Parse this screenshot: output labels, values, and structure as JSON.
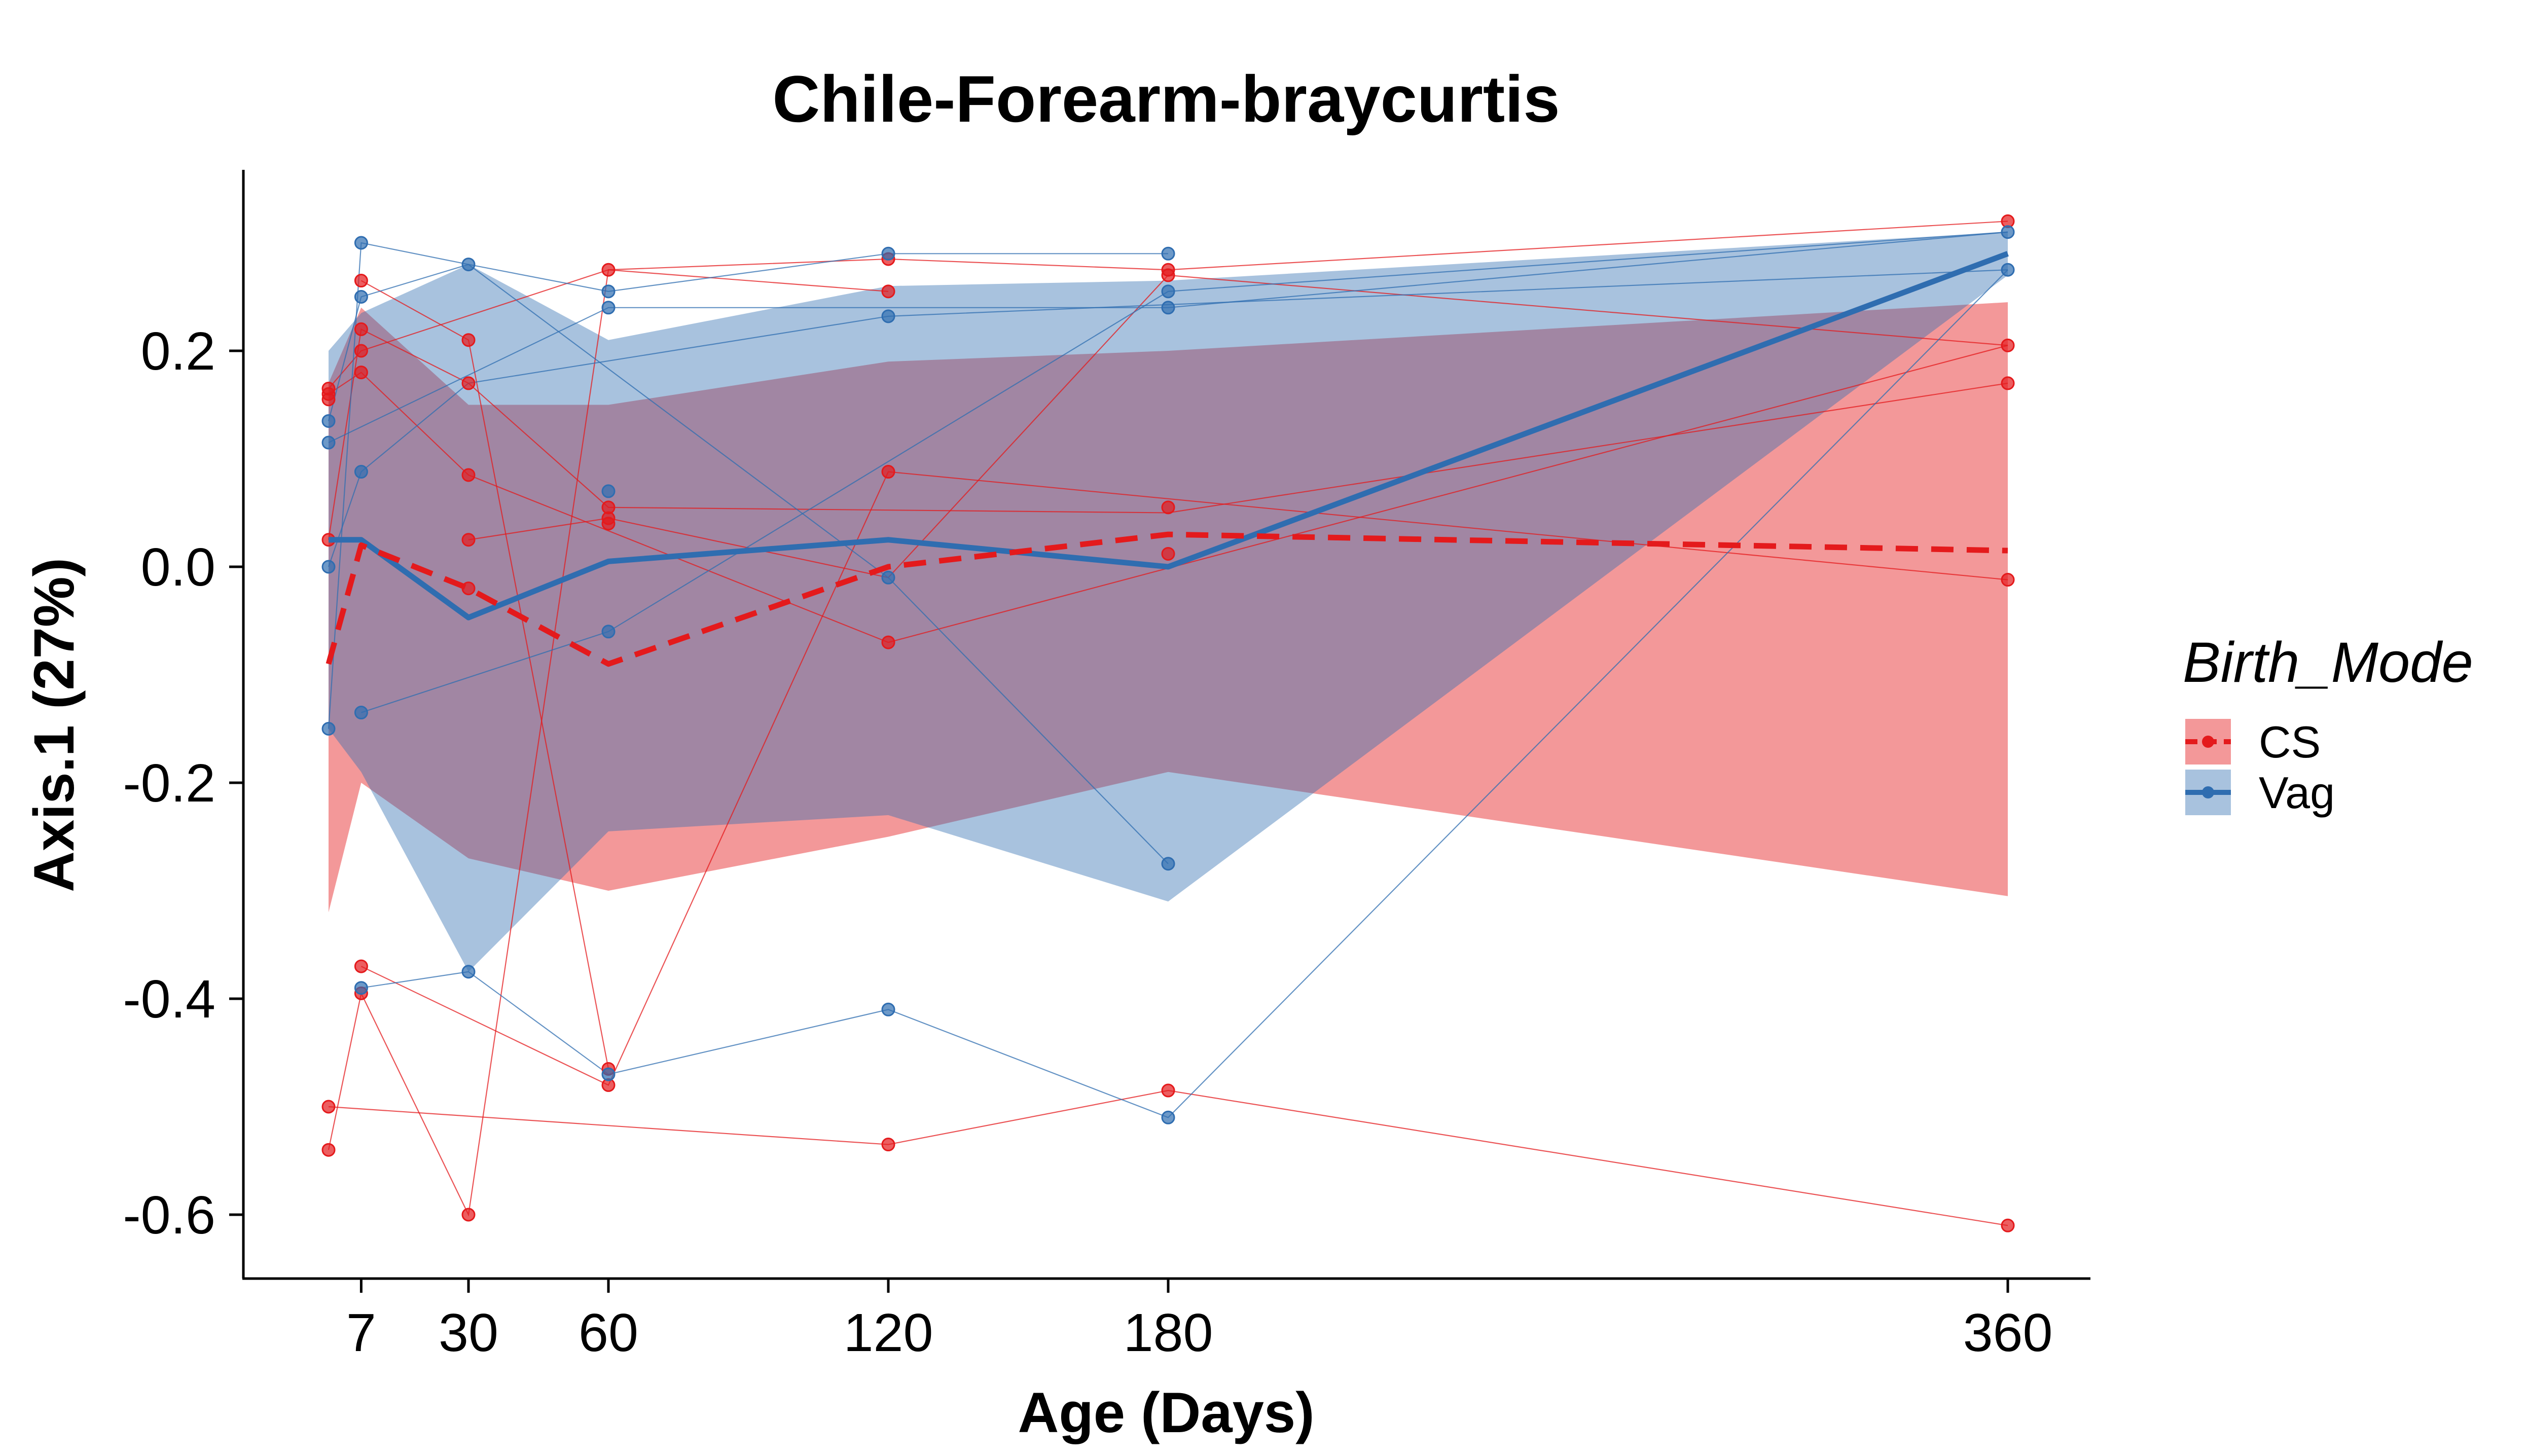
{
  "chart_data": {
    "type": "line",
    "title": "Chile-Forearm-braycurtis",
    "xlabel": "Age (Days)",
    "ylabel": "Axis.1 (27%)",
    "x_ticks": [
      7,
      30,
      60,
      120,
      180,
      360
    ],
    "y_ticks": [
      0.2,
      0.0,
      -0.2,
      -0.4,
      -0.6
    ],
    "y_tick_labels": [
      "0.2",
      "0.0",
      "-0.2",
      "-0.4",
      "-0.6"
    ],
    "xlim": [
      -10,
      378
    ],
    "ylim": [
      -0.655,
      0.365
    ],
    "grid": false,
    "legend": {
      "title": "Birth_Mode",
      "position": "right",
      "entries": [
        "CS",
        "Vag"
      ]
    },
    "series": [
      {
        "name": "CS",
        "color": "#E41A1C",
        "line_style": "dashed",
        "x": [
          0,
          7,
          30,
          60,
          120,
          180,
          360
        ],
        "mean": [
          -0.09,
          0.02,
          -0.02,
          -0.09,
          0.0,
          0.03,
          0.015
        ],
        "ribbon_lower": [
          -0.32,
          -0.2,
          -0.27,
          -0.3,
          -0.25,
          -0.19,
          -0.305
        ],
        "ribbon_upper": [
          0.17,
          0.24,
          0.15,
          0.15,
          0.19,
          0.2,
          0.245
        ],
        "points": [
          [
            0,
            0.165
          ],
          [
            0,
            0.16
          ],
          [
            0,
            0.155
          ],
          [
            0,
            0.025
          ],
          [
            0,
            -0.5
          ],
          [
            0,
            -0.54
          ],
          [
            7,
            0.265
          ],
          [
            7,
            0.22
          ],
          [
            7,
            0.2
          ],
          [
            7,
            0.18
          ],
          [
            7,
            -0.37
          ],
          [
            7,
            -0.395
          ],
          [
            30,
            0.21
          ],
          [
            30,
            0.17
          ],
          [
            30,
            0.085
          ],
          [
            30,
            0.025
          ],
          [
            30,
            -0.02
          ],
          [
            30,
            -0.6
          ],
          [
            60,
            0.275
          ],
          [
            60,
            0.055
          ],
          [
            60,
            0.045
          ],
          [
            60,
            0.04
          ],
          [
            60,
            -0.465
          ],
          [
            60,
            -0.48
          ],
          [
            120,
            0.285
          ],
          [
            120,
            0.255
          ],
          [
            120,
            0.088
          ],
          [
            120,
            -0.07
          ],
          [
            120,
            -0.535
          ],
          [
            180,
            0.275
          ],
          [
            180,
            0.27
          ],
          [
            180,
            0.055
          ],
          [
            180,
            0.012
          ],
          [
            180,
            -0.485
          ],
          [
            360,
            0.32
          ],
          [
            360,
            0.205
          ],
          [
            360,
            0.17
          ],
          [
            360,
            -0.012
          ],
          [
            360,
            -0.61
          ]
        ],
        "trajectories": [
          [
            [
              0,
              0.165
            ],
            [
              7,
              0.2
            ],
            [
              60,
              0.275
            ],
            [
              120,
              0.255
            ]
          ],
          [
            [
              0,
              0.16
            ],
            [
              7,
              0.18
            ],
            [
              30,
              0.085
            ],
            [
              120,
              -0.07
            ],
            [
              360,
              0.205
            ]
          ],
          [
            [
              0,
              0.025
            ],
            [
              7,
              0.22
            ],
            [
              30,
              0.17
            ],
            [
              60,
              0.055
            ],
            [
              180,
              0.05
            ],
            [
              360,
              0.17
            ]
          ],
          [
            [
              0,
              -0.5
            ],
            [
              120,
              -0.535
            ],
            [
              180,
              -0.485
            ],
            [
              360,
              -0.61
            ]
          ],
          [
            [
              0,
              -0.54
            ],
            [
              7,
              -0.395
            ],
            [
              30,
              -0.6
            ],
            [
              60,
              0.275
            ],
            [
              120,
              0.285
            ],
            [
              180,
              0.275
            ],
            [
              360,
              0.32
            ]
          ],
          [
            [
              7,
              0.265
            ],
            [
              30,
              0.21
            ],
            [
              60,
              -0.465
            ]
          ],
          [
            [
              7,
              -0.37
            ],
            [
              60,
              -0.48
            ],
            [
              120,
              0.088
            ],
            [
              360,
              -0.012
            ]
          ],
          [
            [
              30,
              0.025
            ],
            [
              60,
              0.045
            ],
            [
              120,
              -0.01
            ],
            [
              180,
              0.27
            ],
            [
              360,
              0.205
            ]
          ]
        ]
      },
      {
        "name": "Vag",
        "color": "#2F6DB0",
        "line_style": "solid",
        "x": [
          0,
          7,
          30,
          60,
          120,
          180,
          360
        ],
        "mean": [
          0.025,
          0.025,
          -0.047,
          0.005,
          0.025,
          0.0,
          0.29
        ],
        "ribbon_lower": [
          -0.15,
          -0.19,
          -0.375,
          -0.245,
          -0.23,
          -0.31,
          0.27
        ],
        "ribbon_upper": [
          0.2,
          0.235,
          0.28,
          0.21,
          0.26,
          0.265,
          0.31
        ],
        "points": [
          [
            0,
            0.135
          ],
          [
            0,
            0.115
          ],
          [
            0,
            0.0
          ],
          [
            0,
            -0.15
          ],
          [
            7,
            0.3
          ],
          [
            7,
            0.25
          ],
          [
            7,
            0.088
          ],
          [
            7,
            -0.135
          ],
          [
            7,
            -0.39
          ],
          [
            30,
            0.28
          ],
          [
            30,
            -0.375
          ],
          [
            60,
            0.255
          ],
          [
            60,
            0.24
          ],
          [
            60,
            0.07
          ],
          [
            60,
            -0.06
          ],
          [
            60,
            -0.47
          ],
          [
            120,
            0.29
          ],
          [
            120,
            0.232
          ],
          [
            120,
            -0.01
          ],
          [
            120,
            -0.41
          ],
          [
            180,
            0.29
          ],
          [
            180,
            0.255
          ],
          [
            180,
            0.24
          ],
          [
            180,
            -0.275
          ],
          [
            180,
            -0.51
          ],
          [
            360,
            0.31
          ],
          [
            360,
            0.275
          ]
        ],
        "trajectories": [
          [
            [
              0,
              0.135
            ],
            [
              7,
              0.25
            ],
            [
              30,
              0.28
            ],
            [
              60,
              0.255
            ],
            [
              120,
              0.29
            ],
            [
              180,
              0.29
            ]
          ],
          [
            [
              0,
              0.115
            ],
            [
              60,
              0.24
            ],
            [
              180,
              0.24
            ],
            [
              360,
              0.31
            ]
          ],
          [
            [
              0,
              0.0
            ],
            [
              7,
              0.088
            ],
            [
              30,
              0.17
            ],
            [
              120,
              0.232
            ],
            [
              360,
              0.275
            ]
          ],
          [
            [
              0,
              -0.15
            ],
            [
              7,
              0.3
            ],
            [
              30,
              0.28
            ],
            [
              120,
              -0.01
            ],
            [
              180,
              -0.275
            ]
          ],
          [
            [
              7,
              -0.135
            ],
            [
              60,
              -0.06
            ],
            [
              180,
              0.255
            ],
            [
              360,
              0.31
            ]
          ],
          [
            [
              7,
              -0.39
            ],
            [
              30,
              -0.375
            ],
            [
              60,
              -0.47
            ],
            [
              120,
              -0.41
            ],
            [
              180,
              -0.51
            ],
            [
              360,
              0.275
            ]
          ]
        ]
      }
    ],
    "ribbon_colors": {
      "CS": "rgba(228,26,28,0.45)",
      "Vag": "rgba(47,109,176,0.42)"
    }
  }
}
